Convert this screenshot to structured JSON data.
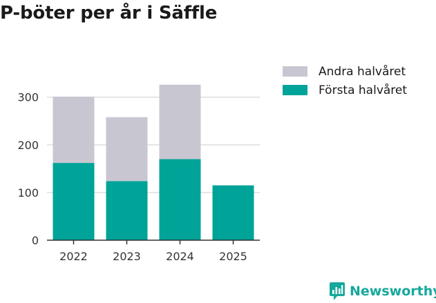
{
  "title": "P-böter per år i Säffle",
  "brand": {
    "name": "Newsworthy",
    "icon": "newsworthy-logo-icon",
    "color": "#16a89c"
  },
  "chart_data": {
    "type": "bar",
    "stacked": true,
    "title": "P-böter per år i Säffle",
    "xlabel": "",
    "ylabel": "",
    "categories": [
      "2022",
      "2023",
      "2024",
      "2025"
    ],
    "series": [
      {
        "name": "Första halvåret",
        "color": "#00a398",
        "values": [
          162,
          124,
          170,
          115
        ]
      },
      {
        "name": "Andra halvåret",
        "color": "#c8c7d1",
        "values": [
          139,
          134,
          156,
          null
        ]
      }
    ],
    "yticks": [
      0,
      100,
      200,
      300
    ],
    "ylim": [
      0,
      330
    ],
    "grid": true,
    "legend_position": "top-right",
    "legend_order": [
      "Andra halvåret",
      "Första halvåret"
    ]
  }
}
